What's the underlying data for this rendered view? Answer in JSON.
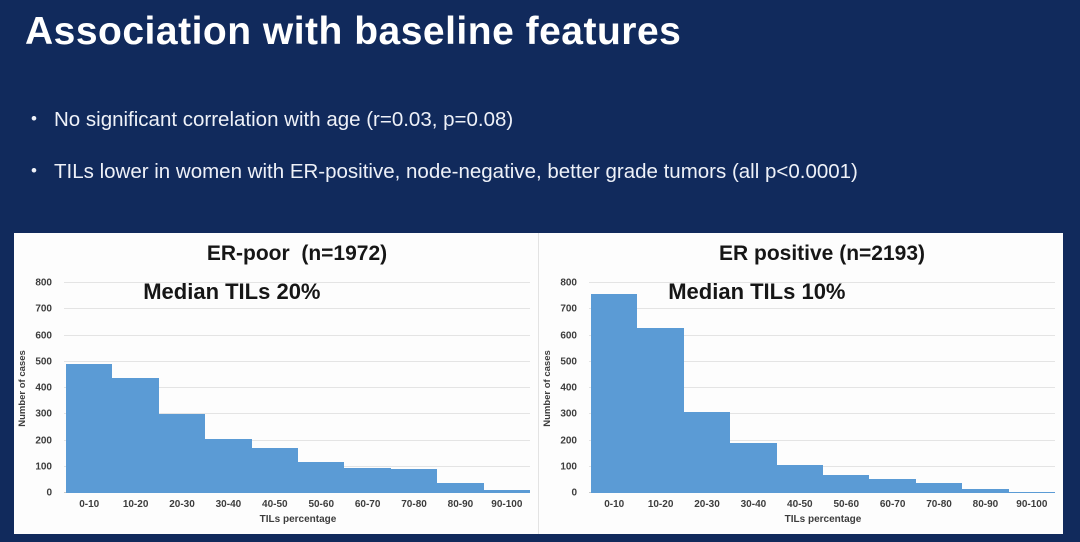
{
  "slide": {
    "title": "Association with baseline features",
    "bullets": [
      "No significant correlation with age (r=0.03, p=0.08)",
      "TILs lower in women with ER-positive, node-negative, better grade tumors (all p<0.0001)"
    ]
  },
  "colors": {
    "background": "#112a5c",
    "panel": "#fdfdfd",
    "bar": "#5b9bd5",
    "gridline": "#e4e4e4",
    "axis_text": "#3d3d3d",
    "title_text": "#ffffff",
    "chart_text": "#161616"
  },
  "chart_data": [
    {
      "type": "bar",
      "title": "ER-poor  (n=1972)",
      "annotation": "Median TILs 20%",
      "categories": [
        "0-10",
        "10-20",
        "20-30",
        "30-40",
        "40-50",
        "50-60",
        "60-70",
        "70-80",
        "80-90",
        "90-100"
      ],
      "values": [
        490,
        440,
        300,
        205,
        170,
        120,
        95,
        90,
        40,
        10
      ],
      "xlabel": "TILs percentage",
      "ylabel": "Number of cases",
      "ylim": [
        0,
        800
      ],
      "yticks": [
        0,
        100,
        200,
        300,
        400,
        500,
        600,
        700,
        800
      ],
      "grid": true,
      "legend": "none"
    },
    {
      "type": "bar",
      "title": "ER positive (n=2193)",
      "annotation": "Median TILs 10%",
      "categories": [
        "0-10",
        "10-20",
        "20-30",
        "30-40",
        "40-50",
        "50-60",
        "60-70",
        "70-80",
        "80-90",
        "90-100"
      ],
      "values": [
        760,
        630,
        310,
        190,
        105,
        70,
        55,
        40,
        15,
        5
      ],
      "xlabel": "TILs percentage",
      "ylabel": "Number of cases",
      "ylim": [
        0,
        800
      ],
      "yticks": [
        0,
        100,
        200,
        300,
        400,
        500,
        600,
        700,
        800
      ],
      "grid": true,
      "legend": "none"
    }
  ]
}
